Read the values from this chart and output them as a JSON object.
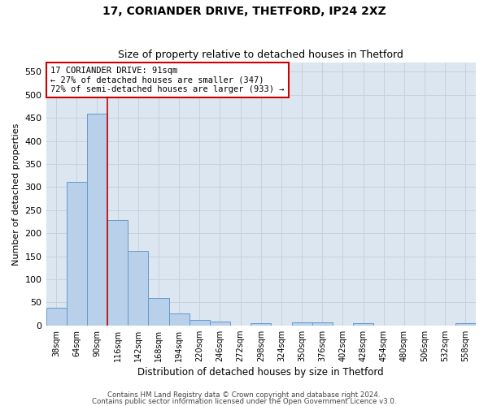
{
  "title": "17, CORIANDER DRIVE, THETFORD, IP24 2XZ",
  "subtitle": "Size of property relative to detached houses in Thetford",
  "xlabel": "Distribution of detached houses by size in Thetford",
  "ylabel": "Number of detached properties",
  "footer_line1": "Contains HM Land Registry data © Crown copyright and database right 2024.",
  "footer_line2": "Contains public sector information licensed under the Open Government Licence v3.0.",
  "bar_labels": [
    "38sqm",
    "64sqm",
    "90sqm",
    "116sqm",
    "142sqm",
    "168sqm",
    "194sqm",
    "220sqm",
    "246sqm",
    "272sqm",
    "298sqm",
    "324sqm",
    "350sqm",
    "376sqm",
    "402sqm",
    "428sqm",
    "454sqm",
    "480sqm",
    "506sqm",
    "532sqm",
    "558sqm"
  ],
  "bar_values": [
    38,
    311,
    459,
    228,
    161,
    59,
    25,
    11,
    9,
    0,
    5,
    0,
    6,
    6,
    0,
    5,
    0,
    0,
    0,
    0,
    4
  ],
  "bar_color": "#b8d0ea",
  "bar_edgecolor": "#6699cc",
  "bar_linewidth": 0.7,
  "vline_color": "#cc0000",
  "vline_position": 2.5,
  "ylim": [
    0,
    570
  ],
  "yticks": [
    0,
    50,
    100,
    150,
    200,
    250,
    300,
    350,
    400,
    450,
    500,
    550
  ],
  "grid_color": "#c8d0dc",
  "background_color": "#dce6f0",
  "annotation_text": "17 CORIANDER DRIVE: 91sqm\n← 27% of detached houses are smaller (347)\n72% of semi-detached houses are larger (933) →",
  "annotation_box_facecolor": "#ffffff",
  "annotation_box_edgecolor": "#cc0000",
  "title_fontsize": 10,
  "subtitle_fontsize": 9
}
